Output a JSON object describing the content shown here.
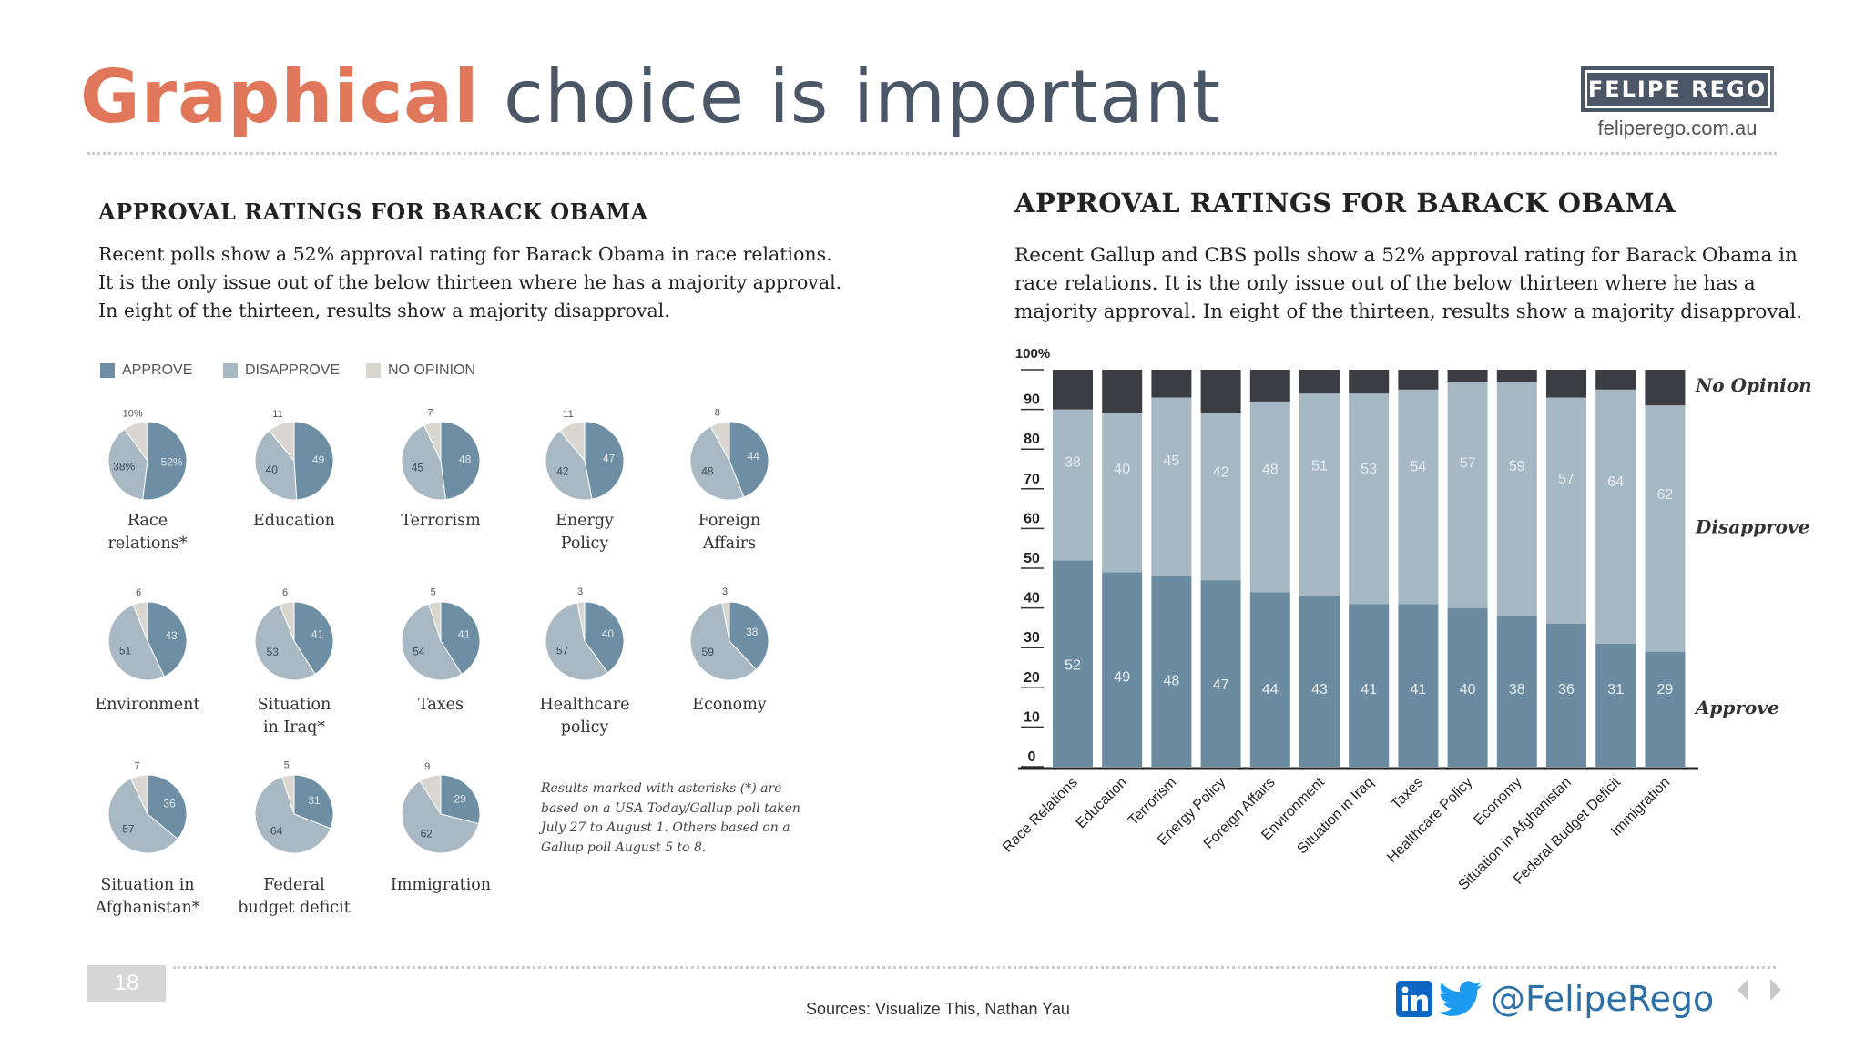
{
  "slide": {
    "title_highlight": "Graphical",
    "title_rest": "choice is important",
    "brand_name": "FELIPE REGO",
    "brand_url": "feliperego.com.au",
    "page_number": "18",
    "sources": "Sources: Visualize This, Nathan Yau",
    "twitter_handle": "@FelipeRego",
    "colors": {
      "accent": "#e0775a",
      "title_gray": "#4b5666",
      "linkedin": "#0a66c2",
      "twitter": "#1d9bf0"
    }
  },
  "left_panel": {
    "title": "APPROVAL RATINGS FOR BARACK OBAMA",
    "description": "Recent polls show a 52% approval rating for Barack Obama in race relations. It is the only issue out of the below thirteen where he has a majority approval. In eight of the thirteen, results show a majority disapproval.",
    "legend": [
      "APPROVE",
      "DISAPPROVE",
      "NO OPINION"
    ],
    "footnote": "Results marked with asterisks (*) are based on a USA Today/Gallup poll taken July 27 to August 1. Others based on a Gallup poll August 5 to 8."
  },
  "right_panel": {
    "title": "APPROVAL RATINGS FOR BARACK OBAMA",
    "description": "Recent Gallup and CBS polls show a 52% approval rating for Barack Obama in race relations. It is the only issue out of the below thirteen where he has a majority approval. In eight of the thirteen, results show a majority disapproval."
  },
  "chart_data": [
    {
      "type": "pie",
      "series_names": [
        "Approve",
        "Disapprove",
        "No Opinion"
      ],
      "colors": [
        "#6e8fa3",
        "#a9b9c4",
        "#d9d6cf"
      ],
      "pies": [
        {
          "label_lines": [
            "Race",
            "relations*"
          ],
          "approve": 52,
          "disapprove": 38,
          "no_opinion": 10,
          "labels": [
            "52%",
            "38%",
            "10%"
          ]
        },
        {
          "label_lines": [
            "Education"
          ],
          "approve": 49,
          "disapprove": 40,
          "no_opinion": 11,
          "labels": [
            "49",
            "40",
            "11"
          ]
        },
        {
          "label_lines": [
            "Terrorism"
          ],
          "approve": 48,
          "disapprove": 45,
          "no_opinion": 7,
          "labels": [
            "48",
            "45",
            "7"
          ]
        },
        {
          "label_lines": [
            "Energy",
            "Policy"
          ],
          "approve": 47,
          "disapprove": 42,
          "no_opinion": 11,
          "labels": [
            "47",
            "42",
            "11"
          ]
        },
        {
          "label_lines": [
            "Foreign",
            "Affairs"
          ],
          "approve": 44,
          "disapprove": 48,
          "no_opinion": 8,
          "labels": [
            "44",
            "48",
            "8"
          ]
        },
        {
          "label_lines": [
            "Environment"
          ],
          "approve": 43,
          "disapprove": 51,
          "no_opinion": 6,
          "labels": [
            "43",
            "51",
            "6"
          ]
        },
        {
          "label_lines": [
            "Situation",
            "in Iraq*"
          ],
          "approve": 41,
          "disapprove": 53,
          "no_opinion": 6,
          "labels": [
            "41",
            "53",
            "6"
          ]
        },
        {
          "label_lines": [
            "Taxes"
          ],
          "approve": 41,
          "disapprove": 54,
          "no_opinion": 5,
          "labels": [
            "41",
            "54",
            "5"
          ]
        },
        {
          "label_lines": [
            "Healthcare",
            "policy"
          ],
          "approve": 40,
          "disapprove": 57,
          "no_opinion": 3,
          "labels": [
            "40",
            "57",
            "3"
          ]
        },
        {
          "label_lines": [
            "Economy"
          ],
          "approve": 38,
          "disapprove": 59,
          "no_opinion": 3,
          "labels": [
            "38",
            "59",
            "3"
          ]
        },
        {
          "label_lines": [
            "Situation in",
            "Afghanistan*"
          ],
          "approve": 36,
          "disapprove": 57,
          "no_opinion": 7,
          "labels": [
            "36",
            "57",
            "7"
          ]
        },
        {
          "label_lines": [
            "Federal",
            "budget deficit"
          ],
          "approve": 31,
          "disapprove": 64,
          "no_opinion": 5,
          "labels": [
            "31",
            "64",
            "5"
          ]
        },
        {
          "label_lines": [
            "Immigration"
          ],
          "approve": 29,
          "disapprove": 62,
          "no_opinion": 9,
          "labels": [
            "29",
            "62",
            "9"
          ]
        }
      ]
    },
    {
      "type": "bar",
      "stacked": true,
      "categories": [
        "Race Relations",
        "Education",
        "Terrorism",
        "Energy Policy",
        "Foreign Affairs",
        "Environment",
        "Situation in Iraq",
        "Taxes",
        "Healthcare Policy",
        "Economy",
        "Situation in Afghanistan",
        "Federal Budget Deficit",
        "Immigration"
      ],
      "series": [
        {
          "name": "Approve",
          "values": [
            52,
            49,
            48,
            47,
            44,
            43,
            41,
            41,
            40,
            38,
            36,
            31,
            29
          ],
          "color": "#6b8ca0"
        },
        {
          "name": "Disapprove",
          "values": [
            38,
            40,
            45,
            42,
            48,
            51,
            53,
            54,
            57,
            59,
            57,
            64,
            62
          ],
          "color": "#a6b8c4"
        },
        {
          "name": "No Opinion",
          "values": [
            10,
            11,
            7,
            11,
            8,
            6,
            6,
            5,
            3,
            3,
            7,
            5,
            9
          ],
          "color": "#3b3d42"
        }
      ],
      "y_ticks": [
        "100%",
        "90",
        "80",
        "70",
        "60",
        "50",
        "40",
        "30",
        "20",
        "10",
        "0"
      ],
      "ylim": [
        0,
        100
      ],
      "legend_placement": "right"
    }
  ]
}
